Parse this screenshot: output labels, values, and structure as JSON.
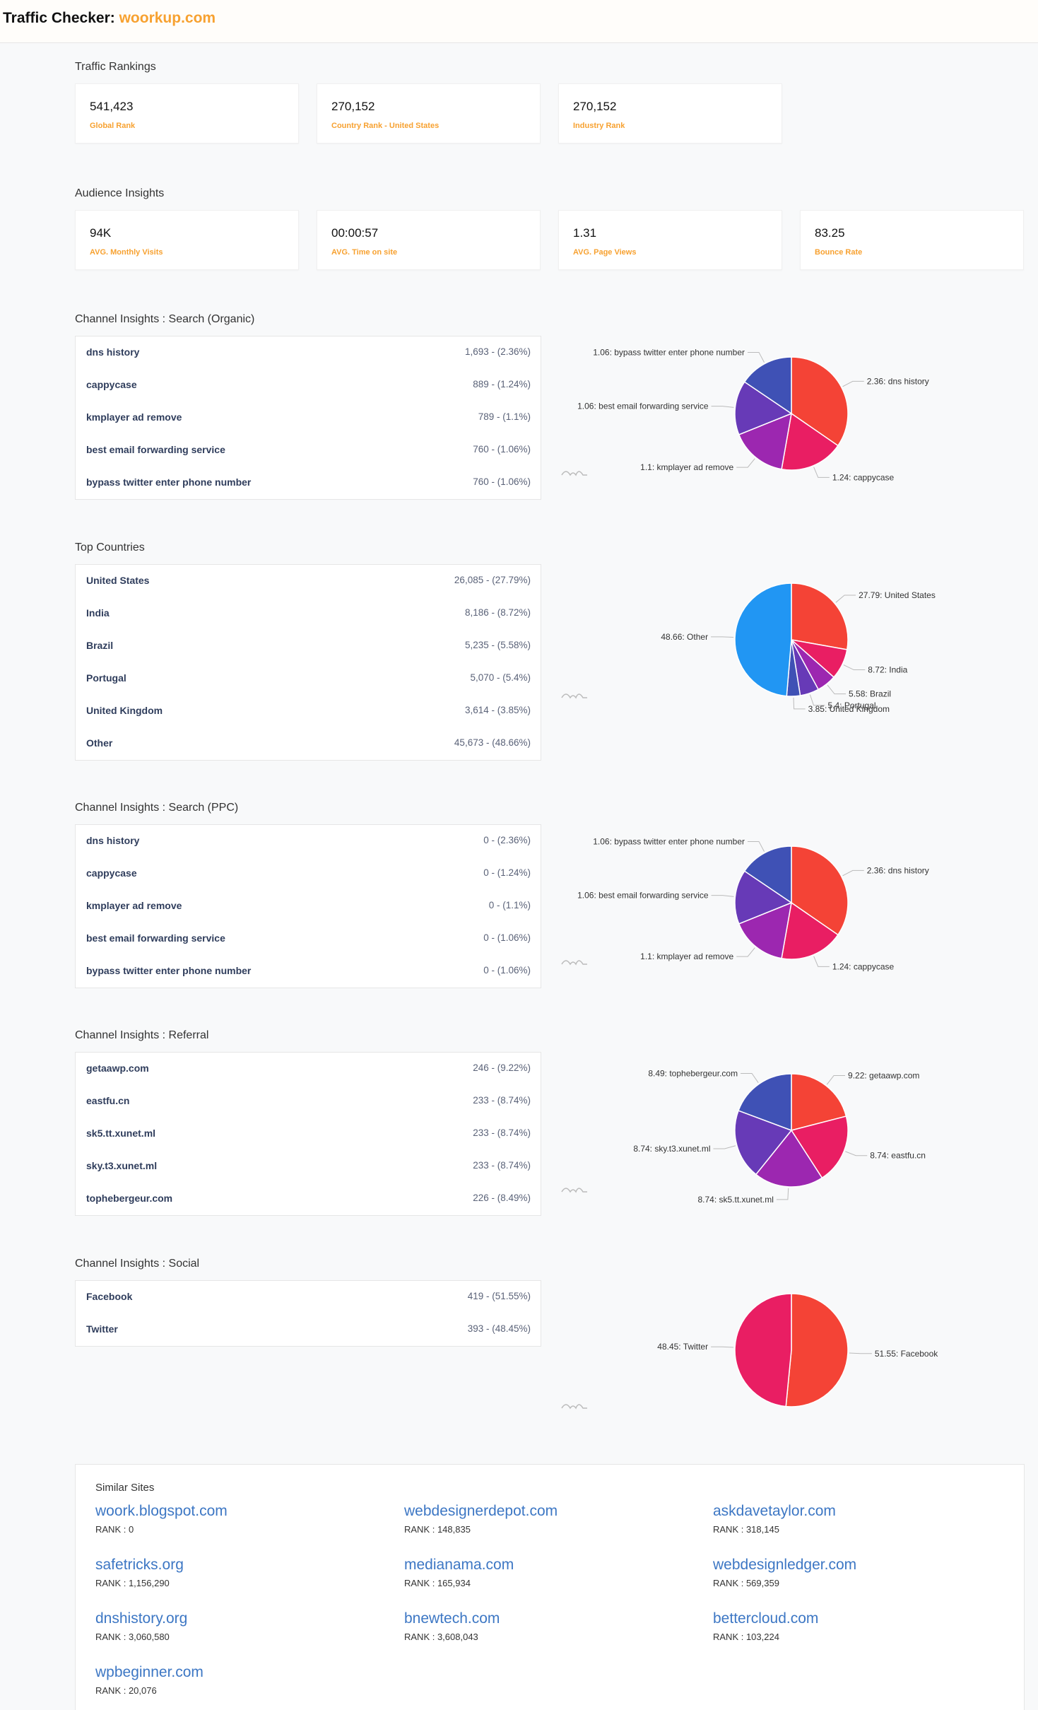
{
  "header": {
    "title_prefix": "Traffic Checker",
    "separator": ": ",
    "domain": "woorkup.com"
  },
  "traffic_rankings": {
    "heading": "Traffic Rankings",
    "cards": [
      {
        "value": "541,423",
        "label": "Global Rank"
      },
      {
        "value": "270,152",
        "label": "Country Rank - United States"
      },
      {
        "value": "270,152",
        "label": "Industry Rank"
      }
    ]
  },
  "audience_insights": {
    "heading": "Audience Insights",
    "cards": [
      {
        "value": "94K",
        "label": "AVG. Monthly Visits"
      },
      {
        "value": "00:00:57",
        "label": "AVG. Time on site"
      },
      {
        "value": "1.31",
        "label": "AVG. Page Views"
      },
      {
        "value": "83.25",
        "label": "Bounce Rate"
      }
    ]
  },
  "organic": {
    "heading": "Channel Insights : Search (Organic)",
    "rows": [
      {
        "name": "dns history",
        "value": "1,693 - (2.36%)"
      },
      {
        "name": "cappycase",
        "value": "889 - (1.24%)"
      },
      {
        "name": "kmplayer ad remove",
        "value": "789 - (1.1%)"
      },
      {
        "name": "best email forwarding service",
        "value": "760 - (1.06%)"
      },
      {
        "name": "bypass twitter enter phone number",
        "value": "760 - (1.06%)"
      }
    ]
  },
  "countries": {
    "heading": "Top Countries",
    "rows": [
      {
        "name": "United States",
        "value": "26,085 - (27.79%)"
      },
      {
        "name": "India",
        "value": "8,186 - (8.72%)"
      },
      {
        "name": "Brazil",
        "value": "5,235 - (5.58%)"
      },
      {
        "name": "Portugal",
        "value": "5,070 - (5.4%)"
      },
      {
        "name": "United Kingdom",
        "value": "3,614 - (3.85%)"
      },
      {
        "name": "Other",
        "value": "45,673 - (48.66%)"
      }
    ]
  },
  "ppc": {
    "heading": "Channel Insights : Search (PPC)",
    "rows": [
      {
        "name": "dns history",
        "value": "0 - (2.36%)"
      },
      {
        "name": "cappycase",
        "value": "0 - (1.24%)"
      },
      {
        "name": "kmplayer ad remove",
        "value": "0 - (1.1%)"
      },
      {
        "name": "best email forwarding service",
        "value": "0 - (1.06%)"
      },
      {
        "name": "bypass twitter enter phone number",
        "value": "0 - (1.06%)"
      }
    ]
  },
  "referral": {
    "heading": "Channel Insights : Referral",
    "rows": [
      {
        "name": "getaawp.com",
        "value": "246 - (9.22%)"
      },
      {
        "name": "eastfu.cn",
        "value": "233 - (8.74%)"
      },
      {
        "name": "sk5.tt.xunet.ml",
        "value": "233 - (8.74%)"
      },
      {
        "name": "sky.t3.xunet.ml",
        "value": "233 - (8.74%)"
      },
      {
        "name": "tophebergeur.com",
        "value": "226 - (8.49%)"
      }
    ]
  },
  "social": {
    "heading": "Channel Insights : Social",
    "rows": [
      {
        "name": "Facebook",
        "value": "419 - (51.55%)"
      },
      {
        "name": "Twitter",
        "value": "393 - (48.45%)"
      }
    ]
  },
  "chart_data": [
    {
      "type": "pie",
      "slices": [
        {
          "label": "2.36: dns history",
          "value": 2.36,
          "color": "#f44336"
        },
        {
          "label": "1.24: cappycase",
          "value": 1.24,
          "color": "#e91e63"
        },
        {
          "label": "1.1: kmplayer ad remove",
          "value": 1.1,
          "color": "#9c27b0"
        },
        {
          "label": "1.06: best email forwarding service",
          "value": 1.06,
          "color": "#673ab7"
        },
        {
          "label": "1.06: bypass twitter enter phone number",
          "value": 1.06,
          "color": "#3f51b5"
        }
      ]
    },
    {
      "type": "pie",
      "slices": [
        {
          "label": "27.79: United States",
          "value": 27.79,
          "color": "#f44336"
        },
        {
          "label": "8.72: India",
          "value": 8.72,
          "color": "#e91e63"
        },
        {
          "label": "5.58: Brazil",
          "value": 5.58,
          "color": "#9c27b0"
        },
        {
          "label": "5.4: Portugal",
          "value": 5.4,
          "color": "#673ab7"
        },
        {
          "label": "3.85: United Kingdom",
          "value": 3.85,
          "color": "#3f51b5"
        },
        {
          "label": "48.66: Other",
          "value": 48.66,
          "color": "#2196f3"
        }
      ]
    },
    {
      "type": "pie",
      "slices": [
        {
          "label": "2.36: dns history",
          "value": 2.36,
          "color": "#f44336"
        },
        {
          "label": "1.24: cappycase",
          "value": 1.24,
          "color": "#e91e63"
        },
        {
          "label": "1.1: kmplayer ad remove",
          "value": 1.1,
          "color": "#9c27b0"
        },
        {
          "label": "1.06: best email forwarding service",
          "value": 1.06,
          "color": "#673ab7"
        },
        {
          "label": "1.06: bypass twitter enter phone number",
          "value": 1.06,
          "color": "#3f51b5"
        }
      ]
    },
    {
      "type": "pie",
      "slices": [
        {
          "label": "9.22: getaawp.com",
          "value": 9.22,
          "color": "#f44336"
        },
        {
          "label": "8.74: eastfu.cn",
          "value": 8.74,
          "color": "#e91e63"
        },
        {
          "label": "8.74: sk5.tt.xunet.ml",
          "value": 8.74,
          "color": "#9c27b0"
        },
        {
          "label": "8.74: sky.t3.xunet.ml",
          "value": 8.74,
          "color": "#673ab7"
        },
        {
          "label": "8.49: tophebergeur.com",
          "value": 8.49,
          "color": "#3f51b5"
        }
      ]
    },
    {
      "type": "pie",
      "slices": [
        {
          "label": "51.55: Facebook",
          "value": 51.55,
          "color": "#f44336"
        },
        {
          "label": "48.45: Twitter",
          "value": 48.45,
          "color": "#e91e63"
        }
      ]
    }
  ],
  "similar_sites": {
    "heading": "Similar Sites",
    "sites": [
      {
        "name": "woork.blogspot.com",
        "rank": "RANK : 0"
      },
      {
        "name": "webdesignerdepot.com",
        "rank": "RANK : 148,835"
      },
      {
        "name": "askdavetaylor.com",
        "rank": "RANK : 318,145"
      },
      {
        "name": "safetricks.org",
        "rank": "RANK : 1,156,290"
      },
      {
        "name": "medianama.com",
        "rank": "RANK : 165,934"
      },
      {
        "name": "webdesignledger.com",
        "rank": "RANK : 569,359"
      },
      {
        "name": "dnshistory.org",
        "rank": "RANK : 3,060,580"
      },
      {
        "name": "bnewtech.com",
        "rank": "RANK : 3,608,043"
      },
      {
        "name": "bettercloud.com",
        "rank": "RANK : 103,224"
      },
      {
        "name": "wpbeginner.com",
        "rank": "RANK : 20,076"
      }
    ]
  }
}
